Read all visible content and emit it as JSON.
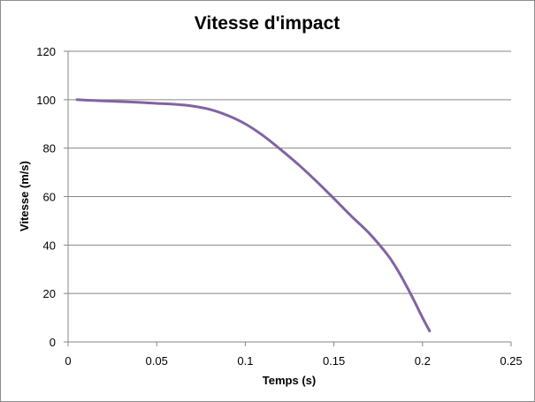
{
  "chart_data": {
    "type": "line",
    "title": "Vitesse d'impact",
    "xlabel": "Temps (s)",
    "ylabel": "Vitesse (m/s)",
    "xlim": [
      0,
      0.25
    ],
    "ylim": [
      0,
      120
    ],
    "x_ticks": [
      0,
      0.05,
      0.1,
      0.15,
      0.2,
      0.25
    ],
    "x_tick_labels": [
      "0",
      "0.05",
      "0.1",
      "0.15",
      "0.2",
      "0.25"
    ],
    "y_ticks": [
      0,
      20,
      40,
      60,
      80,
      100,
      120
    ],
    "y_tick_labels": [
      "0",
      "20",
      "40",
      "60",
      "80",
      "100",
      "120"
    ],
    "grid": {
      "horizontal": true,
      "vertical": false
    },
    "legend": "none",
    "series": [
      {
        "color": "#8064a2",
        "x": [
          0.005,
          0.01,
          0.02,
          0.03,
          0.04,
          0.05,
          0.06,
          0.07,
          0.08,
          0.09,
          0.1,
          0.11,
          0.12,
          0.13,
          0.14,
          0.15,
          0.16,
          0.17,
          0.18,
          0.185,
          0.19,
          0.195,
          0.2,
          0.204
        ],
        "y": [
          100,
          99.8,
          99.5,
          99.2,
          98.9,
          98.5,
          98.1,
          97.4,
          96.0,
          93.5,
          90.0,
          85.2,
          79.4,
          73.2,
          66.4,
          59.2,
          51.8,
          44.8,
          36.2,
          30.8,
          24.4,
          17.4,
          10.0,
          4.5
        ]
      }
    ]
  }
}
